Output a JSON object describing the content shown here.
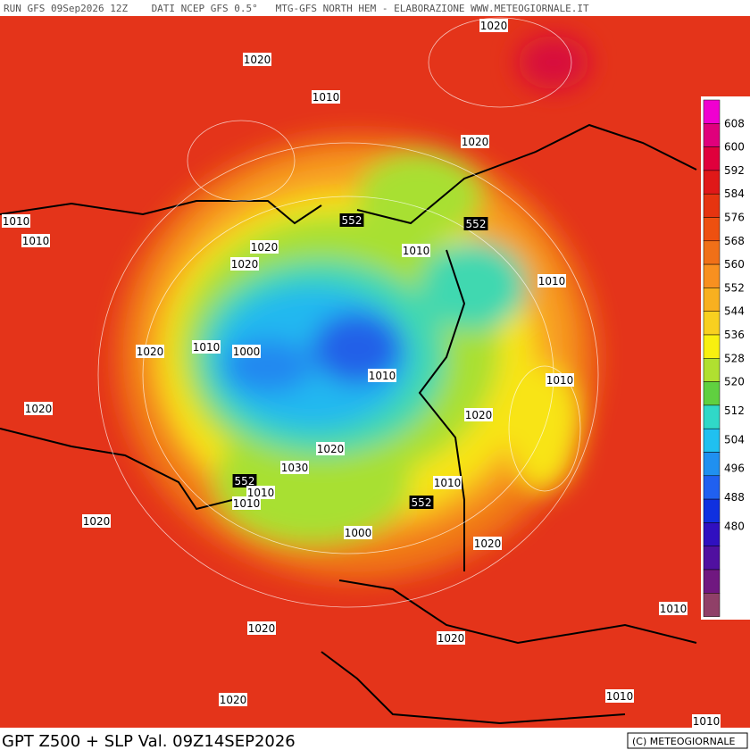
{
  "header": {
    "text": "RUN GFS 09Sep2026 12Z    DATI NCEP GFS 0.5°   MTG-GFS NORTH HEM - ELABORAZIONE WWW.METEOGIORNALE.IT"
  },
  "contour_labels": [
    "1020",
    "1020",
    "1010",
    "1020",
    "552",
    "552",
    "1010",
    "1010",
    "1020",
    "1020",
    "1010",
    "1010",
    "1010",
    "1020",
    "1000",
    "1010",
    "1010",
    "1020",
    "1020",
    "1020",
    "1030",
    "552",
    "1010",
    "1010",
    "1010",
    "552",
    "1020",
    "1000",
    "1020",
    "1020",
    "1010",
    "1020",
    "1020",
    "1010",
    "1010"
  ],
  "colorbar": {
    "labels": [
      608,
      600,
      592,
      584,
      576,
      568,
      560,
      552,
      544,
      536,
      528,
      520,
      512,
      504,
      496,
      488,
      480
    ]
  },
  "footer": {
    "title": "GPT Z500 + SLP Val. 09Z14SEP2026",
    "credit": "(C) METEOGIORNALE"
  }
}
